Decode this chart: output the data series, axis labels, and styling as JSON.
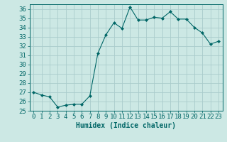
{
  "x": [
    0,
    1,
    2,
    3,
    4,
    5,
    6,
    7,
    8,
    9,
    10,
    11,
    12,
    13,
    14,
    15,
    16,
    17,
    18,
    19,
    20,
    21,
    22,
    23
  ],
  "y": [
    27.0,
    26.7,
    26.5,
    25.4,
    25.6,
    25.7,
    25.7,
    26.6,
    31.2,
    33.2,
    34.5,
    33.9,
    36.2,
    34.8,
    34.8,
    35.1,
    35.0,
    35.7,
    34.9,
    34.9,
    34.0,
    33.4,
    32.2,
    32.5
  ],
  "line_color": "#006666",
  "marker": "D",
  "marker_size": 2.0,
  "bg_color": "#cce8e4",
  "grid_color": "#aacccc",
  "xlabel": "Humidex (Indice chaleur)",
  "ylim": [
    25,
    36.5
  ],
  "xlim": [
    -0.5,
    23.5
  ],
  "yticks": [
    25,
    26,
    27,
    28,
    29,
    30,
    31,
    32,
    33,
    34,
    35,
    36
  ],
  "xticks": [
    0,
    1,
    2,
    3,
    4,
    5,
    6,
    7,
    8,
    9,
    10,
    11,
    12,
    13,
    14,
    15,
    16,
    17,
    18,
    19,
    20,
    21,
    22,
    23
  ],
  "tick_color": "#006666",
  "label_color": "#006666",
  "axis_color": "#006666",
  "font_size_xlabel": 7,
  "font_size_ticks": 6.5
}
